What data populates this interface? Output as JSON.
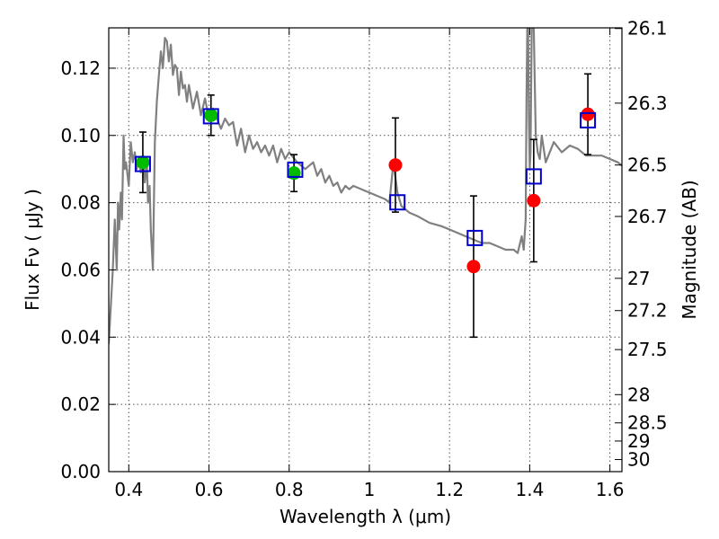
{
  "chart_data": {
    "type": "scatter",
    "xlabel": "Wavelength  λ (μm)",
    "ylabel": "Flux  Fν  ( μJy )",
    "ylabel_right": "Magnitude (AB)",
    "xlim": [
      0.35,
      1.63
    ],
    "ylim": [
      0.0,
      0.132
    ],
    "grid": true,
    "x_ticks": [
      0.4,
      0.6,
      0.8,
      1.0,
      1.2,
      1.4,
      1.6
    ],
    "x_tick_labels": [
      "0.4",
      "0.6",
      "0.8",
      "1",
      "1.2",
      "1.4",
      "1.6"
    ],
    "y_ticks": [
      0.0,
      0.02,
      0.04,
      0.06,
      0.08,
      0.1,
      0.12
    ],
    "y_tick_labels": [
      "0.00",
      "0.02",
      "0.04",
      "0.06",
      "0.08",
      "0.10",
      "0.12"
    ],
    "right_ticks": [
      {
        "label": "26.1",
        "flux": 0.1318
      },
      {
        "label": "26.3",
        "flux": 0.1096
      },
      {
        "label": "26.5",
        "flux": 0.0912
      },
      {
        "label": "26.7",
        "flux": 0.0759
      },
      {
        "label": "27",
        "flux": 0.0575
      },
      {
        "label": "27.2",
        "flux": 0.0479
      },
      {
        "label": "27.5",
        "flux": 0.0363
      },
      {
        "label": "28",
        "flux": 0.0229
      },
      {
        "label": "28.5",
        "flux": 0.0145
      },
      {
        "label": "29",
        "flux": 0.0091
      },
      {
        "label": "30",
        "flux": 0.0036
      }
    ],
    "colors": {
      "model": "#808080",
      "green": "#00bb00",
      "red": "#ff0000",
      "square": "#0000cc",
      "errorbar": "#000000",
      "grid": "#555555"
    },
    "model_spectrum": {
      "x": [
        0.35,
        0.36,
        0.365,
        0.37,
        0.373,
        0.376,
        0.38,
        0.383,
        0.387,
        0.39,
        0.393,
        0.397,
        0.4,
        0.405,
        0.41,
        0.415,
        0.42,
        0.425,
        0.43,
        0.435,
        0.44,
        0.445,
        0.448,
        0.452,
        0.455,
        0.458,
        0.46,
        0.465,
        0.47,
        0.475,
        0.48,
        0.485,
        0.49,
        0.495,
        0.5,
        0.505,
        0.51,
        0.515,
        0.52,
        0.525,
        0.53,
        0.535,
        0.54,
        0.545,
        0.55,
        0.56,
        0.57,
        0.58,
        0.59,
        0.6,
        0.61,
        0.62,
        0.63,
        0.64,
        0.65,
        0.66,
        0.67,
        0.68,
        0.69,
        0.7,
        0.71,
        0.72,
        0.73,
        0.74,
        0.75,
        0.76,
        0.77,
        0.78,
        0.79,
        0.8,
        0.82,
        0.84,
        0.86,
        0.87,
        0.88,
        0.89,
        0.9,
        0.91,
        0.92,
        0.93,
        0.94,
        0.95,
        0.96,
        0.98,
        1.0,
        1.02,
        1.04,
        1.05,
        1.06,
        1.07,
        1.08,
        1.1,
        1.12,
        1.15,
        1.18,
        1.2,
        1.22,
        1.24,
        1.26,
        1.28,
        1.3,
        1.32,
        1.34,
        1.36,
        1.37,
        1.38,
        1.385,
        1.39,
        1.392,
        1.394,
        1.396,
        1.398,
        1.4,
        1.402,
        1.405,
        1.41,
        1.415,
        1.42,
        1.425,
        1.43,
        1.44,
        1.46,
        1.48,
        1.5,
        1.52,
        1.54,
        1.56,
        1.58,
        1.6,
        1.62,
        1.63
      ],
      "y": [
        0.038,
        0.06,
        0.075,
        0.06,
        0.08,
        0.072,
        0.083,
        0.075,
        0.1,
        0.09,
        0.092,
        0.088,
        0.085,
        0.098,
        0.092,
        0.095,
        0.09,
        0.093,
        0.089,
        0.094,
        0.086,
        0.092,
        0.08,
        0.085,
        0.072,
        0.065,
        0.06,
        0.098,
        0.11,
        0.118,
        0.125,
        0.12,
        0.129,
        0.128,
        0.122,
        0.127,
        0.118,
        0.121,
        0.12,
        0.112,
        0.119,
        0.114,
        0.115,
        0.11,
        0.115,
        0.108,
        0.113,
        0.106,
        0.111,
        0.105,
        0.108,
        0.105,
        0.102,
        0.105,
        0.103,
        0.104,
        0.097,
        0.102,
        0.095,
        0.1,
        0.096,
        0.098,
        0.095,
        0.097,
        0.094,
        0.097,
        0.092,
        0.096,
        0.093,
        0.095,
        0.092,
        0.09,
        0.092,
        0.088,
        0.09,
        0.086,
        0.088,
        0.085,
        0.086,
        0.083,
        0.085,
        0.084,
        0.085,
        0.084,
        0.083,
        0.082,
        0.081,
        0.08,
        0.092,
        0.083,
        0.079,
        0.077,
        0.076,
        0.074,
        0.073,
        0.072,
        0.071,
        0.07,
        0.069,
        0.068,
        0.068,
        0.067,
        0.066,
        0.066,
        0.065,
        0.07,
        0.066,
        0.075,
        0.11,
        0.132,
        0.132,
        0.105,
        0.09,
        0.095,
        0.132,
        0.132,
        0.1,
        0.095,
        0.093,
        0.1,
        0.092,
        0.098,
        0.095,
        0.097,
        0.096,
        0.094,
        0.094,
        0.094,
        0.093,
        0.092,
        0.091
      ]
    },
    "observed_green": [
      {
        "x": 0.435,
        "y": 0.092,
        "err": 0.009
      },
      {
        "x": 0.605,
        "y": 0.106,
        "err": 0.006
      },
      {
        "x": 0.812,
        "y": 0.0888,
        "err": 0.0055
      }
    ],
    "observed_red": [
      {
        "x": 1.065,
        "y": 0.0912,
        "err": 0.014
      },
      {
        "x": 1.26,
        "y": 0.061,
        "err": 0.021
      },
      {
        "x": 1.41,
        "y": 0.0806,
        "err": 0.0182
      },
      {
        "x": 1.545,
        "y": 0.1063,
        "err": 0.012
      }
    ],
    "model_squares": [
      {
        "x": 0.435,
        "y": 0.0915
      },
      {
        "x": 0.605,
        "y": 0.1057
      },
      {
        "x": 0.815,
        "y": 0.0898
      },
      {
        "x": 1.07,
        "y": 0.0801
      },
      {
        "x": 1.263,
        "y": 0.0695
      },
      {
        "x": 1.41,
        "y": 0.0878
      },
      {
        "x": 1.545,
        "y": 0.1045
      }
    ]
  }
}
